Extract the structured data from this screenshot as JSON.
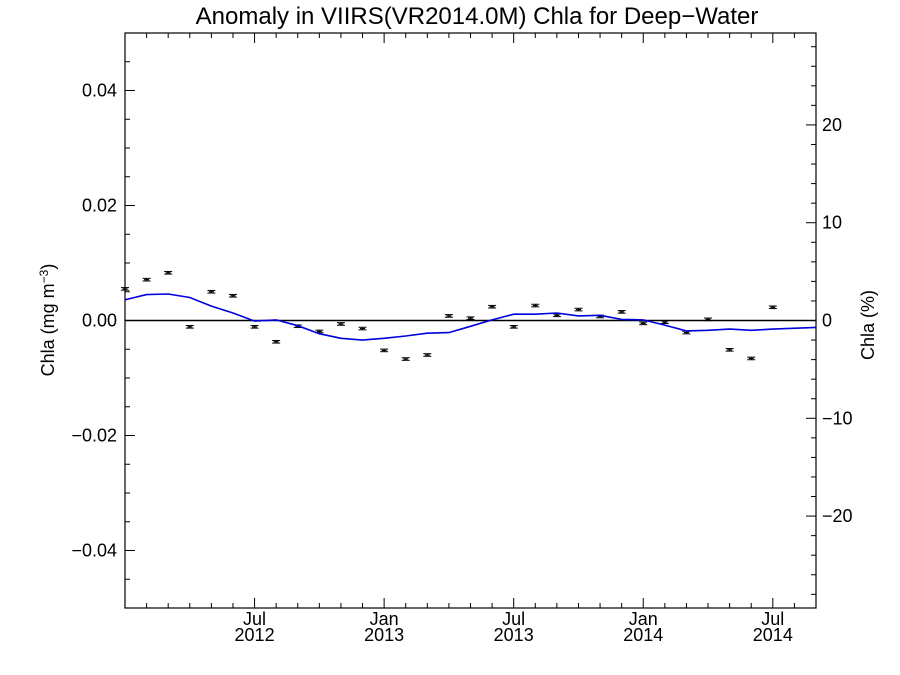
{
  "chart_data": {
    "type": "line",
    "title": "Anomaly in VIIRS(VR2014.0M) Chla for Deep−Water",
    "ylabel_left": "Chla (mg m",
    "ylabel_left_sup": "−3",
    "ylabel_left_end": ")",
    "ylabel_right": "Chla (%)",
    "ylim_left": [
      -0.05,
      0.05
    ],
    "ylim_right": [
      -29.4,
      29.4
    ],
    "y_ticks_left": [
      {
        "value": 0.04,
        "label": "0.04"
      },
      {
        "value": 0.02,
        "label": "0.02"
      },
      {
        "value": 0.0,
        "label": "0.00"
      },
      {
        "value": -0.02,
        "label": "−0.02"
      },
      {
        "value": -0.04,
        "label": "−0.04"
      }
    ],
    "y_ticks_right": [
      {
        "value": 20,
        "label": "20"
      },
      {
        "value": 10,
        "label": "10"
      },
      {
        "value": 0,
        "label": "0"
      },
      {
        "value": -10,
        "label": "−10"
      },
      {
        "value": -20,
        "label": "−20"
      }
    ],
    "x_range": [
      "2012-01",
      "2014-09"
    ],
    "x_major_ticks": [
      {
        "month": "2012-07",
        "label1": "Jul",
        "label2": "2012"
      },
      {
        "month": "2013-01",
        "label1": "Jan",
        "label2": "2013"
      },
      {
        "month": "2013-07",
        "label1": "Jul",
        "label2": "2013"
      },
      {
        "month": "2014-01",
        "label1": "Jan",
        "label2": "2014"
      },
      {
        "month": "2014-07",
        "label1": "Jul",
        "label2": "2014"
      }
    ],
    "series": [
      {
        "kind": "points_with_error_bars",
        "color": "#000000",
        "points": [
          {
            "x": "2012-01-01",
            "y": 0.0055
          },
          {
            "x": "2012-02-01",
            "y": 0.0071
          },
          {
            "x": "2012-03-01",
            "y": 0.0083
          },
          {
            "x": "2012-04-01",
            "y": -0.0011
          },
          {
            "x": "2012-05-01",
            "y": 0.005
          },
          {
            "x": "2012-06-01",
            "y": 0.0043
          },
          {
            "x": "2012-07-01",
            "y": -0.0011
          },
          {
            "x": "2012-08-01",
            "y": -0.0037
          },
          {
            "x": "2012-09-01",
            "y": -0.001
          },
          {
            "x": "2012-10-01",
            "y": -0.0019
          },
          {
            "x": "2012-11-01",
            "y": -0.0006
          },
          {
            "x": "2012-12-01",
            "y": -0.0014
          },
          {
            "x": "2013-01-01",
            "y": -0.0052
          },
          {
            "x": "2013-02-01",
            "y": -0.0067
          },
          {
            "x": "2013-03-01",
            "y": -0.006
          },
          {
            "x": "2013-04-01",
            "y": 0.0008
          },
          {
            "x": "2013-05-01",
            "y": 0.0004
          },
          {
            "x": "2013-06-01",
            "y": 0.0024
          },
          {
            "x": "2013-07-01",
            "y": -0.0011
          },
          {
            "x": "2013-08-01",
            "y": 0.0026
          },
          {
            "x": "2013-09-01",
            "y": 0.0009
          },
          {
            "x": "2013-10-01",
            "y": 0.0019
          },
          {
            "x": "2013-11-01",
            "y": 0.0007
          },
          {
            "x": "2013-12-01",
            "y": 0.0015
          },
          {
            "x": "2014-01-01",
            "y": -0.0005
          },
          {
            "x": "2014-02-01",
            "y": -0.0003
          },
          {
            "x": "2014-03-01",
            "y": -0.0021
          },
          {
            "x": "2014-04-01",
            "y": 0.0002
          },
          {
            "x": "2014-05-01",
            "y": -0.0051
          },
          {
            "x": "2014-06-01",
            "y": -0.0066
          },
          {
            "x": "2014-07-01",
            "y": 0.0023
          }
        ]
      },
      {
        "kind": "line",
        "color": "#0000dd",
        "points": [
          {
            "x": "2011-12-15",
            "y": 0.0036
          },
          {
            "x": "2012-02-01",
            "y": 0.0045
          },
          {
            "x": "2012-03-01",
            "y": 0.0046
          },
          {
            "x": "2012-04-01",
            "y": 0.004
          },
          {
            "x": "2012-05-01",
            "y": 0.0025
          },
          {
            "x": "2012-06-01",
            "y": 0.0013
          },
          {
            "x": "2012-07-01",
            "y": -0.0001
          },
          {
            "x": "2012-08-01",
            "y": 0.0001
          },
          {
            "x": "2012-09-01",
            "y": -0.0009
          },
          {
            "x": "2012-10-01",
            "y": -0.0023
          },
          {
            "x": "2012-11-01",
            "y": -0.0031
          },
          {
            "x": "2012-12-01",
            "y": -0.0034
          },
          {
            "x": "2013-01-01",
            "y": -0.0031
          },
          {
            "x": "2013-02-01",
            "y": -0.0027
          },
          {
            "x": "2013-03-01",
            "y": -0.0022
          },
          {
            "x": "2013-04-01",
            "y": -0.0021
          },
          {
            "x": "2013-05-01",
            "y": -0.001
          },
          {
            "x": "2013-06-01",
            "y": 0.0001
          },
          {
            "x": "2013-07-01",
            "y": 0.0011
          },
          {
            "x": "2013-08-01",
            "y": 0.0011
          },
          {
            "x": "2013-09-01",
            "y": 0.0013
          },
          {
            "x": "2013-10-01",
            "y": 0.0008
          },
          {
            "x": "2013-11-01",
            "y": 0.0009
          },
          {
            "x": "2013-12-01",
            "y": 0.0002
          },
          {
            "x": "2014-01-01",
            "y": 0.0001
          },
          {
            "x": "2014-02-01",
            "y": -0.0008
          },
          {
            "x": "2014-03-01",
            "y": -0.0018
          },
          {
            "x": "2014-04-01",
            "y": -0.0017
          },
          {
            "x": "2014-05-01",
            "y": -0.0015
          },
          {
            "x": "2014-06-01",
            "y": -0.0017
          },
          {
            "x": "2014-07-01",
            "y": -0.0015
          },
          {
            "x": "2014-09-01",
            "y": -0.0012
          }
        ]
      }
    ],
    "zero_line": 0.0,
    "grid": false
  }
}
